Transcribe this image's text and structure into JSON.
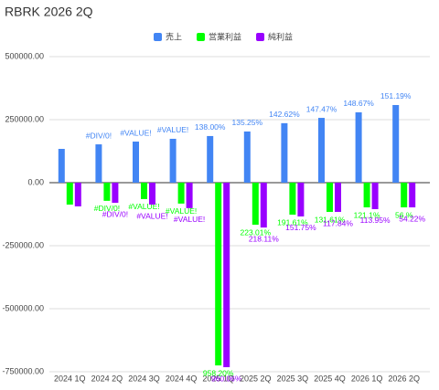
{
  "chart_data": {
    "type": "bar",
    "title": "RBRK 2026 2Q",
    "categories": [
      "2024 1Q",
      "2024 2Q",
      "2024 3Q",
      "2024 4Q",
      "2025 1Q",
      "2025 2Q",
      "2025 3Q",
      "2025 4Q",
      "2026 1Q",
      "2026 2Q"
    ],
    "series": [
      {
        "name": "売上",
        "color": "#4285f4",
        "values": [
          134000,
          152000,
          163000,
          174000,
          185000,
          203000,
          236000,
          257000,
          279000,
          308000
        ],
        "data_labels": [
          null,
          "#DIV/0!",
          "#VALUE!",
          "#VALUE!",
          "138.00%",
          "135.25%",
          "142.62%",
          "147.47%",
          "148.67%",
          "151.19%"
        ]
      },
      {
        "name": "営業利益",
        "color": "#00ff00",
        "values": [
          -87000,
          -72000,
          -65000,
          -83000,
          -725000,
          -167000,
          -127000,
          -116000,
          -98000,
          -98000
        ],
        "data_labels": [
          null,
          "#DIV/0!",
          "#VALUE!",
          "#VALUE!",
          "958.20%",
          "223.01%",
          "191.61%",
          "131.61%",
          "121.1%",
          "56.%"
        ]
      },
      {
        "name": "純利益",
        "color": "#9900ff",
        "values": [
          -94000,
          -80000,
          -87000,
          -101000,
          -732000,
          -178000,
          -134000,
          -116000,
          -105000,
          -98000
        ],
        "data_labels": [
          null,
          "#DIV/0!",
          "#VALUE!",
          "#VALUE!",
          "960.06%",
          "218.11%",
          "151.75%",
          "117.84%",
          "113.95%",
          "54.22%"
        ]
      }
    ],
    "ylim": [
      -750000,
      500000
    ],
    "yticks": [
      {
        "value": -750000,
        "label": "-750000.00"
      },
      {
        "value": -500000,
        "label": "-500000.00"
      },
      {
        "value": -250000,
        "label": "-250000.00"
      },
      {
        "value": 0,
        "label": "0.00"
      },
      {
        "value": 250000,
        "label": "250000.00"
      },
      {
        "value": 500000,
        "label": "500000.00"
      }
    ],
    "grid": true
  }
}
